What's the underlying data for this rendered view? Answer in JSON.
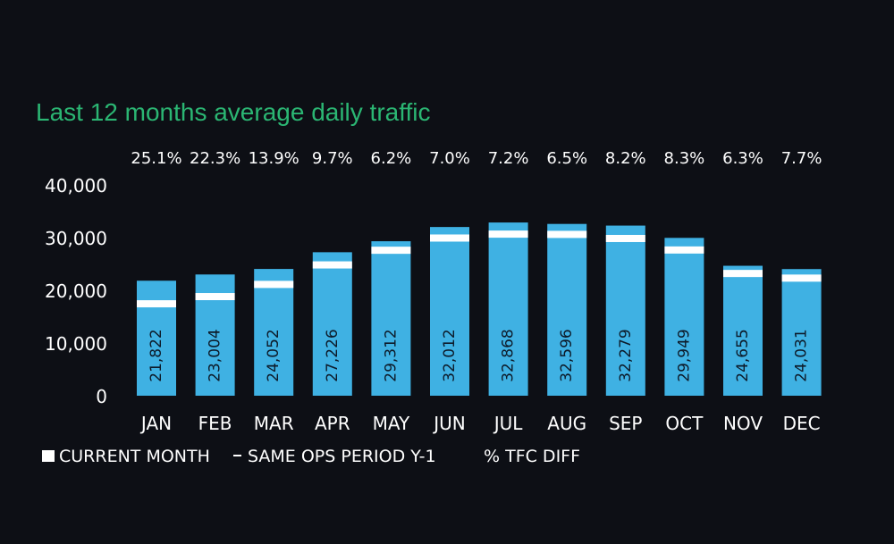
{
  "chart_data": {
    "type": "bar",
    "title": "Last 12 months average daily traffic",
    "categories": [
      "JAN",
      "FEB",
      "MAR",
      "APR",
      "MAY",
      "JUN",
      "JUL",
      "AUG",
      "SEP",
      "OCT",
      "NOV",
      "DEC"
    ],
    "series": [
      {
        "name": "CURRENT MONTH",
        "values": [
          21822,
          23004,
          24052,
          27226,
          29312,
          32012,
          32868,
          32596,
          32279,
          29949,
          24655,
          24031
        ]
      },
      {
        "name": "SAME OPS PERIOD Y-1",
        "values": [
          17443,
          18810,
          21116,
          24819,
          27601,
          29918,
          30660,
          30607,
          29833,
          27652,
          23195,
          22313
        ]
      }
    ],
    "value_labels": [
      "21,822",
      "23,004",
      "24,052",
      "27,226",
      "29,312",
      "32,012",
      "32,868",
      "32,596",
      "32,279",
      "29,949",
      "24,655",
      "24,031"
    ],
    "pct_diff_labels": [
      "25.1%",
      "22.3%",
      "13.9%",
      "9.7%",
      "6.2%",
      "7.0%",
      "7.2%",
      "6.5%",
      "8.2%",
      "8.3%",
      "6.3%",
      "7.7%"
    ],
    "y_ticks": [
      "40,000",
      "30,000",
      "20,000",
      "10,000",
      "0"
    ],
    "y_tick_values": [
      40000,
      30000,
      20000,
      10000,
      0
    ],
    "ylim": [
      0,
      40000
    ],
    "legend": {
      "current_label": "CURRENT MONTH",
      "prev_label": "SAME OPS PERIOD Y-1",
      "pct_label": "% TFC DIFF"
    },
    "colors": {
      "bar": "#3fb1e3",
      "marker": "#ffffff",
      "title": "#2bb673",
      "text": "#ffffff",
      "background": "#0d0f15",
      "value_label": "#0d1b2a"
    }
  }
}
